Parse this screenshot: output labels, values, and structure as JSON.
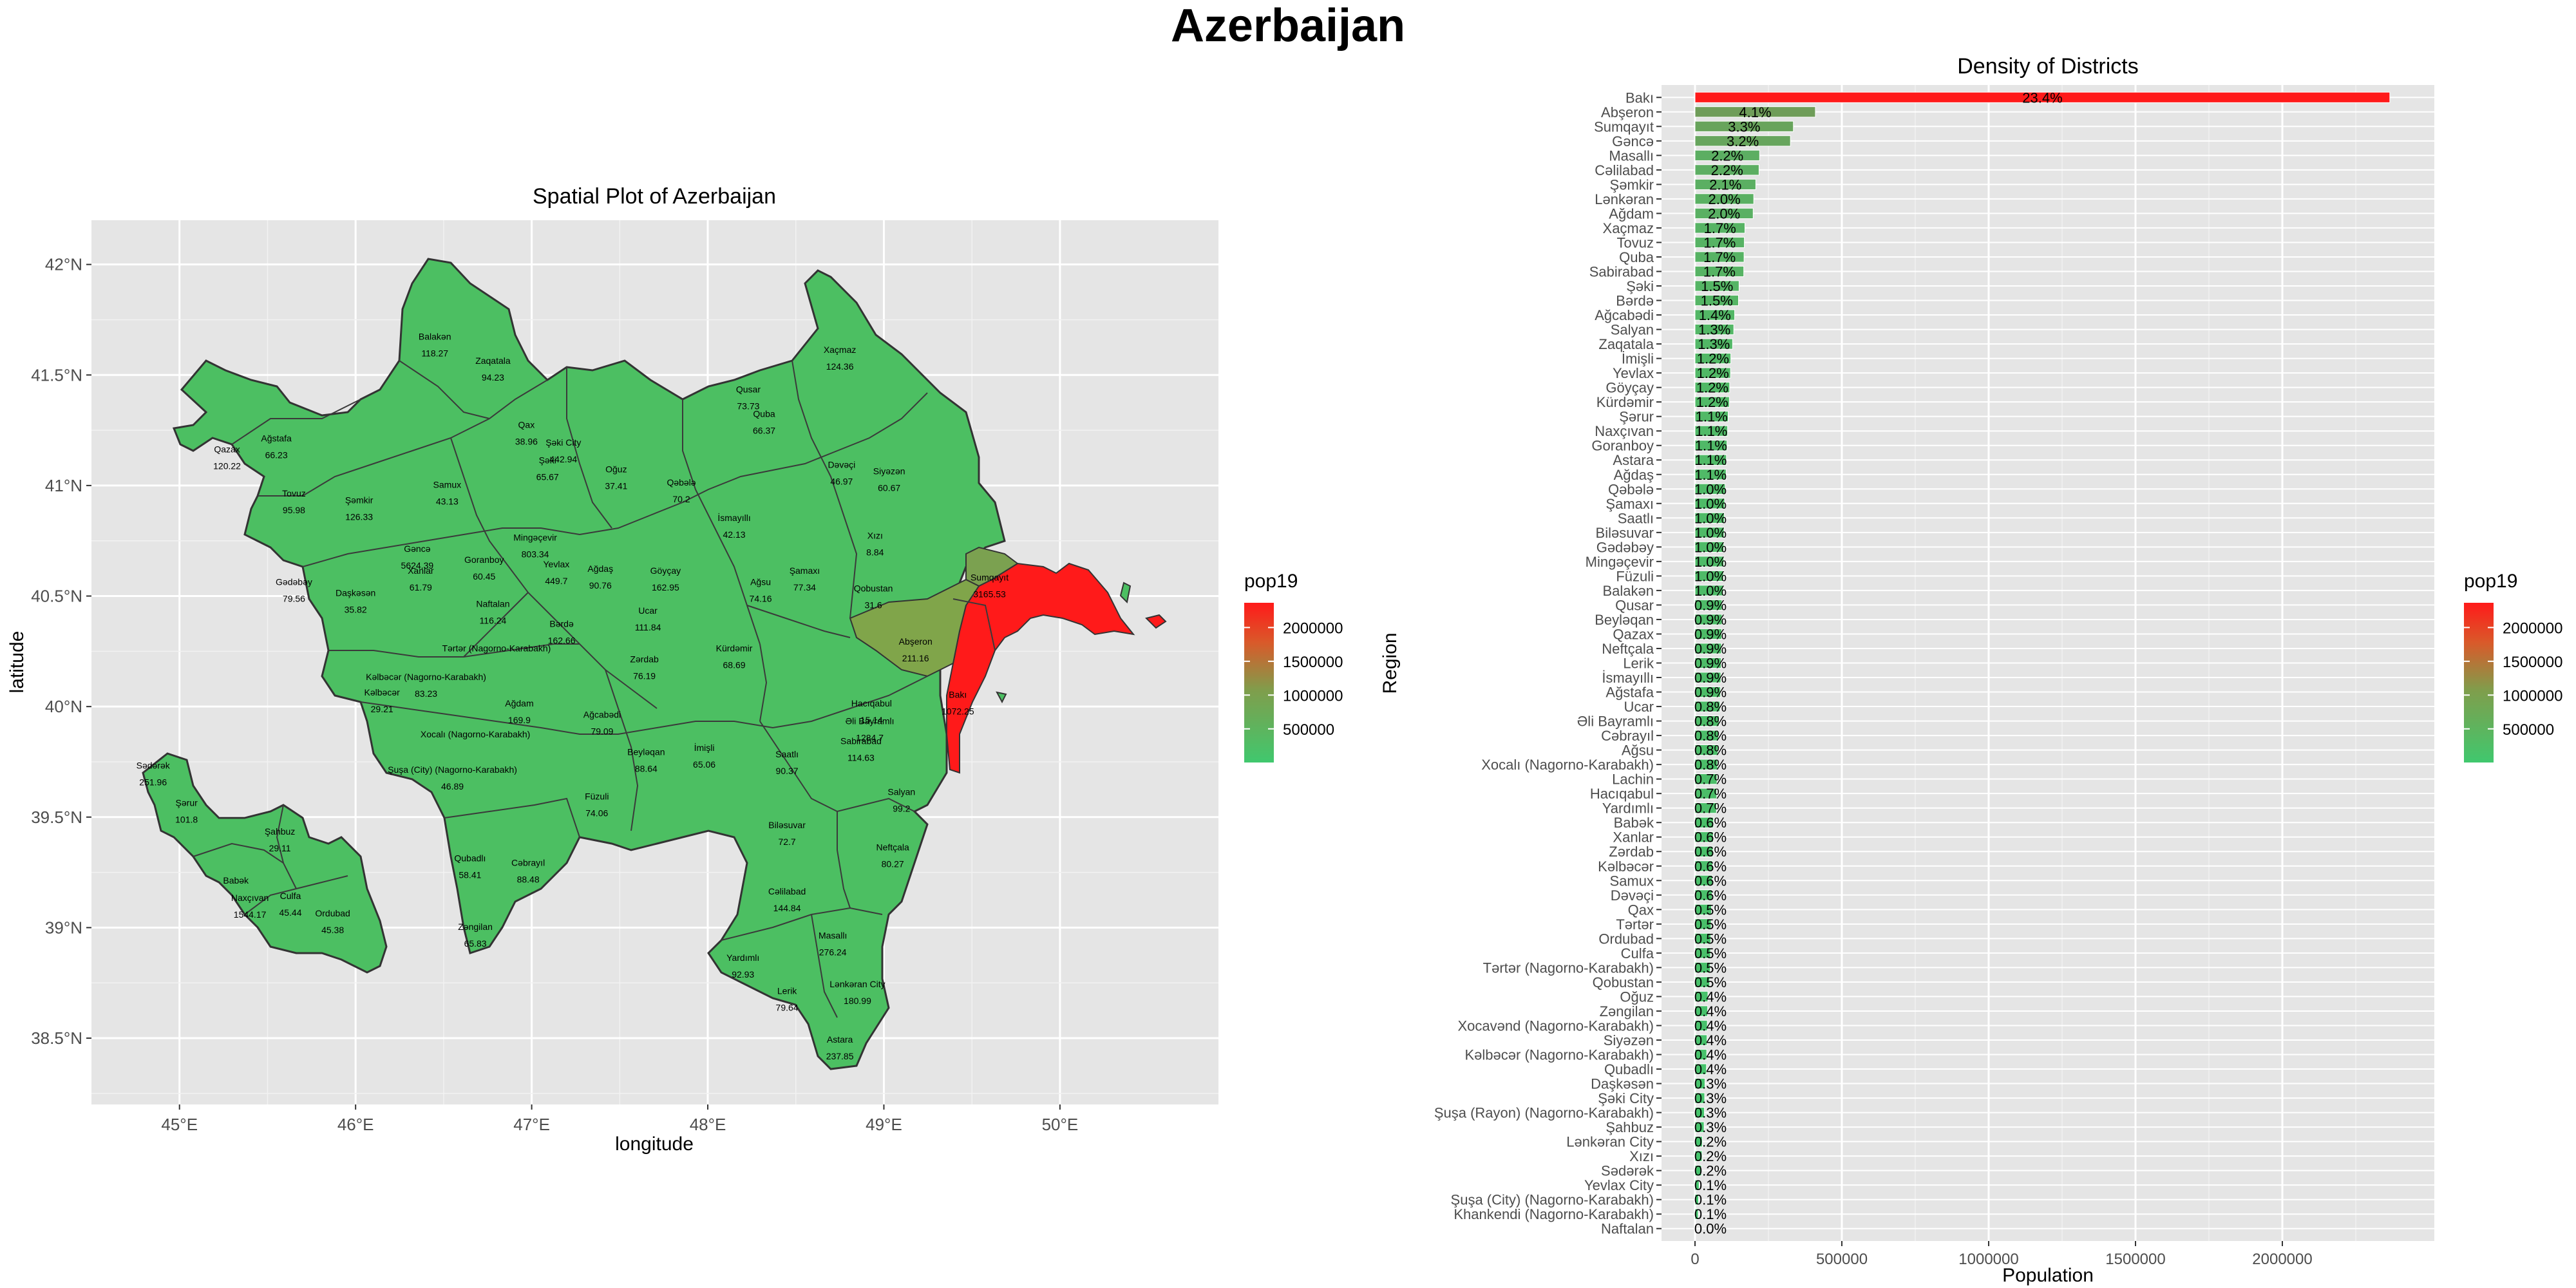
{
  "page_title": "Azerbaijan",
  "chart_data": [
    {
      "type": "map",
      "title": "Spatial Plot of Azerbaijan",
      "xlabel": "longitude",
      "ylabel": "latitude",
      "x_ticks": [
        "45°E",
        "46°E",
        "47°E",
        "48°E",
        "49°E",
        "50°E"
      ],
      "x_tick_values": [
        45,
        46,
        47,
        48,
        49,
        50
      ],
      "y_ticks": [
        "42°N",
        "41.5°N",
        "41°N",
        "40.5°N",
        "40°N",
        "39.5°N",
        "39°N",
        "38.5°N"
      ],
      "y_tick_values": [
        42,
        41.5,
        41,
        40.5,
        40,
        39.5,
        39,
        38.5
      ],
      "xlim": [
        44.5,
        50.9
      ],
      "ylim": [
        38.2,
        42.2
      ],
      "grid": true,
      "legend": {
        "title": "pop19",
        "labels": [
          "2000000",
          "1500000",
          "1000000",
          "500000"
        ],
        "values": [
          2000000,
          1500000,
          1000000,
          500000
        ],
        "low_color": "#40c86e",
        "high_color": "#ff1a1a",
        "placement": "right"
      },
      "regions": [
        {
          "name": "Balakən",
          "value": "118.27",
          "lon": 46.45,
          "lat": 41.66
        },
        {
          "name": "Zaqatala",
          "value": "94.23",
          "lon": 46.78,
          "lat": 41.55
        },
        {
          "name": "Qax",
          "value": "38.96",
          "lon": 46.97,
          "lat": 41.26
        },
        {
          "name": "Şəki City",
          "value": "442.94",
          "lon": 47.18,
          "lat": 41.18
        },
        {
          "name": "Şəki",
          "value": "65.67",
          "lon": 47.09,
          "lat": 41.1
        },
        {
          "name": "Oğuz",
          "value": "37.41",
          "lon": 47.48,
          "lat": 41.06
        },
        {
          "name": "Qəbələ",
          "value": "70.2",
          "lon": 47.85,
          "lat": 41.0
        },
        {
          "name": "Qusar",
          "value": "73.73",
          "lon": 48.23,
          "lat": 41.42
        },
        {
          "name": "Quba",
          "value": "66.37",
          "lon": 48.32,
          "lat": 41.31
        },
        {
          "name": "Xaçmaz",
          "value": "124.36",
          "lon": 48.75,
          "lat": 41.6
        },
        {
          "name": "Dəvəçi",
          "value": "46.97",
          "lon": 48.76,
          "lat": 41.08
        },
        {
          "name": "Siyəzən",
          "value": "60.67",
          "lon": 49.03,
          "lat": 41.05
        },
        {
          "name": "Xızı",
          "value": "8.84",
          "lon": 48.95,
          "lat": 40.76
        },
        {
          "name": "Qazax",
          "value": "120.22",
          "lon": 45.27,
          "lat": 41.15
        },
        {
          "name": "Ağstafa",
          "value": "66.23",
          "lon": 45.55,
          "lat": 41.2
        },
        {
          "name": "Tovuz",
          "value": "95.98",
          "lon": 45.65,
          "lat": 40.95
        },
        {
          "name": "Şəmkir",
          "value": "126.33",
          "lon": 46.02,
          "lat": 40.92
        },
        {
          "name": "Samux",
          "value": "43.13",
          "lon": 46.52,
          "lat": 40.99
        },
        {
          "name": "Gədəbəy",
          "value": "79.56",
          "lon": 45.65,
          "lat": 40.55
        },
        {
          "name": "Gəncə",
          "value": "5624.39",
          "lon": 46.35,
          "lat": 40.7
        },
        {
          "name": "Xanlar",
          "value": "61.79",
          "lon": 46.37,
          "lat": 40.6
        },
        {
          "name": "Daşkəsən",
          "value": "35.82",
          "lon": 46.0,
          "lat": 40.5
        },
        {
          "name": "Goranboy",
          "value": "60.45",
          "lon": 46.73,
          "lat": 40.65
        },
        {
          "name": "Naftalan",
          "value": "116.24",
          "lon": 46.78,
          "lat": 40.45
        },
        {
          "name": "Mingəçevir",
          "value": "803.34",
          "lon": 47.02,
          "lat": 40.75
        },
        {
          "name": "Yevlax",
          "value": "449.7",
          "lon": 47.14,
          "lat": 40.63
        },
        {
          "name": "Ağdaş",
          "value": "90.76",
          "lon": 47.39,
          "lat": 40.61
        },
        {
          "name": "Bərdə",
          "value": "162.66",
          "lon": 47.17,
          "lat": 40.36
        },
        {
          "name": "Göyçay",
          "value": "162.95",
          "lon": 47.76,
          "lat": 40.6
        },
        {
          "name": "Ucar",
          "value": "111.84",
          "lon": 47.66,
          "lat": 40.42
        },
        {
          "name": "İsmayıllı",
          "value": "42.13",
          "lon": 48.15,
          "lat": 40.84
        },
        {
          "name": "Ağsu",
          "value": "74.16",
          "lon": 48.3,
          "lat": 40.55
        },
        {
          "name": "Şamaxı",
          "value": "77.34",
          "lon": 48.55,
          "lat": 40.6
        },
        {
          "name": "Qobustan",
          "value": "31.6",
          "lon": 48.94,
          "lat": 40.52
        },
        {
          "name": "Sumqayıt",
          "value": "3165.53",
          "lon": 49.6,
          "lat": 40.57
        },
        {
          "name": "Abşeron",
          "value": "211.16",
          "lon": 49.18,
          "lat": 40.28
        },
        {
          "name": "Bakı",
          "value": "1072.25",
          "lon": 49.42,
          "lat": 40.04
        },
        {
          "name": "Tərtər (Nagorno-Karabakh)",
          "value": "",
          "lon": 46.8,
          "lat": 40.25
        },
        {
          "name": "Kəlbəcər (Nagorno-Karabakh)",
          "value": "83.23",
          "lon": 46.4,
          "lat": 40.12
        },
        {
          "name": "Kəlbəcər",
          "value": "29.21",
          "lon": 46.15,
          "lat": 40.05
        },
        {
          "name": "Ağdam",
          "value": "169.9",
          "lon": 46.93,
          "lat": 40.0
        },
        {
          "name": "Zərdab",
          "value": "76.19",
          "lon": 47.64,
          "lat": 40.2
        },
        {
          "name": "Kürdəmir",
          "value": "68.69",
          "lon": 48.15,
          "lat": 40.25
        },
        {
          "name": "Ağcabədi",
          "value": "79.09",
          "lon": 47.4,
          "lat": 39.95
        },
        {
          "name": "Beyləqan",
          "value": "88.64",
          "lon": 47.65,
          "lat": 39.78
        },
        {
          "name": "İmişli",
          "value": "65.06",
          "lon": 47.98,
          "lat": 39.8
        },
        {
          "name": "Hacıqabul",
          "value": "15.14",
          "lon": 48.93,
          "lat": 40.0
        },
        {
          "name": "Əli Bayramlı",
          "value": "1284.7",
          "lon": 48.92,
          "lat": 39.92
        },
        {
          "name": "Sabirabad",
          "value": "114.63",
          "lon": 48.87,
          "lat": 39.83
        },
        {
          "name": "Saatlı",
          "value": "90.37",
          "lon": 48.45,
          "lat": 39.77
        },
        {
          "name": "Salyan",
          "value": "99.2",
          "lon": 49.1,
          "lat": 39.6
        },
        {
          "name": "Bilәsuvar",
          "value": "72.7",
          "lon": 48.45,
          "lat": 39.45
        },
        {
          "name": "Neftçala",
          "value": "80.27",
          "lon": 49.05,
          "lat": 39.35
        },
        {
          "name": "Cəlilabad",
          "value": "144.84",
          "lon": 48.45,
          "lat": 39.15
        },
        {
          "name": "Masallı",
          "value": "276.24",
          "lon": 48.71,
          "lat": 38.95
        },
        {
          "name": "Yardımlı",
          "value": "92.93",
          "lon": 48.2,
          "lat": 38.85
        },
        {
          "name": "Lerik",
          "value": "79.64",
          "lon": 48.45,
          "lat": 38.7
        },
        {
          "name": "Lənkəran City",
          "value": "180.99",
          "lon": 48.85,
          "lat": 38.73
        },
        {
          "name": "Astara",
          "value": "237.85",
          "lon": 48.75,
          "lat": 38.48
        },
        {
          "name": "Xocalı (Nagorno-Karabakh)",
          "value": "",
          "lon": 46.68,
          "lat": 39.86
        },
        {
          "name": "Şuşa (City) (Nagorno-Karabakh)",
          "value": "46.89",
          "lon": 46.55,
          "lat": 39.7
        },
        {
          "name": "Füzuli",
          "value": "74.06",
          "lon": 47.37,
          "lat": 39.58
        },
        {
          "name": "Cəbrayıl",
          "value": "88.48",
          "lon": 46.98,
          "lat": 39.28
        },
        {
          "name": "Qubadlı",
          "value": "58.41",
          "lon": 46.65,
          "lat": 39.3
        },
        {
          "name": "Zəngilan",
          "value": "65.83",
          "lon": 46.68,
          "lat": 38.99
        },
        {
          "name": "Sədərək",
          "value": "251.96",
          "lon": 44.85,
          "lat": 39.72
        },
        {
          "name": "Şərur",
          "value": "101.8",
          "lon": 45.04,
          "lat": 39.55
        },
        {
          "name": "Şahbuz",
          "value": "29.11",
          "lon": 45.57,
          "lat": 39.42
        },
        {
          "name": "Babək",
          "value": "",
          "lon": 45.32,
          "lat": 39.2
        },
        {
          "name": "Naxçıvan",
          "value": "1544.17",
          "lon": 45.4,
          "lat": 39.12
        },
        {
          "name": "Culfa",
          "value": "45.44",
          "lon": 45.63,
          "lat": 39.13
        },
        {
          "name": "Ordubad",
          "value": "45.38",
          "lon": 45.87,
          "lat": 39.05
        }
      ]
    },
    {
      "type": "bar",
      "orientation": "horizontal",
      "title": "Density of Districts",
      "xlabel": "Population",
      "ylabel": "Region",
      "x_ticks": [
        "0",
        "500000",
        "1000000",
        "1500000",
        "2000000"
      ],
      "x_tick_values": [
        0,
        500000,
        1000000,
        1500000,
        2000000
      ],
      "xlim": [
        0,
        2500000
      ],
      "grid": true,
      "legend": {
        "title": "pop19",
        "labels": [
          "2000000",
          "1500000",
          "1000000",
          "500000"
        ],
        "values": [
          2000000,
          1500000,
          1000000,
          500000
        ],
        "low_color": "#40c86e",
        "high_color": "#ff1a1a",
        "placement": "right"
      },
      "categories": [
        "Bakı",
        "Abşeron",
        "Sumqayıt",
        "Gəncə",
        "Masallı",
        "Cəlilabad",
        "Şəmkir",
        "Lənkəran",
        "Ağdam",
        "Xaçmaz",
        "Tovuz",
        "Quba",
        "Sabirabad",
        "Şəki",
        "Bərdə",
        "Ağcabədi",
        "Salyan",
        "Zaqatala",
        "İmişli",
        "Yevlax",
        "Göyçay",
        "Kürdəmir",
        "Şərur",
        "Naxçıvan",
        "Goranboy",
        "Astara",
        "Ağdaş",
        "Qəbələ",
        "Şamaxı",
        "Saatlı",
        "Biləsuvar",
        "Gədəbəy",
        "Mingəçevir",
        "Füzuli",
        "Balakən",
        "Qusar",
        "Beyləqan",
        "Qazax",
        "Neftçala",
        "Lerik",
        "İsmayıllı",
        "Ağstafa",
        "Ucar",
        "Əli Bayramlı",
        "Cəbrayıl",
        "Ağsu",
        "Xocalı  (Nagorno-Karabakh)",
        "Lachin",
        "Hacıqabul",
        "Yardımlı",
        "Babək",
        "Xanlar",
        "Zərdab",
        "Kəlbəcər",
        "Samux",
        "Dəvəçi",
        "Qax",
        "Tərtər",
        "Ordubad",
        "Culfa",
        "Tərtər (Nagorno-Karabakh)",
        "Qobustan",
        "Oğuz",
        "Zəngilan",
        "Xocavənd  (Nagorno-Karabakh)",
        "Siyəzən",
        "Kəlbəcər  (Nagorno-Karabakh)",
        "Qubadlı",
        "Daşkəsən",
        "Şəki City",
        "Şuşa (Rayon) (Nagorno-Karabakh)",
        "Şahbuz",
        "Lənkəran City",
        "Xızı",
        "Sədərək",
        "Yevlax City",
        "Şuşa (City)  (Nagorno-Karabakh)",
        "Khankendi  (Nagorno-Karabakh)",
        "Naftalan"
      ],
      "values": [
        2366000,
        410000,
        335000,
        325000,
        220000,
        218000,
        207000,
        200000,
        198000,
        170000,
        168000,
        167000,
        166000,
        150000,
        148000,
        135000,
        132000,
        128000,
        122000,
        121000,
        118000,
        117000,
        113000,
        111000,
        109000,
        107000,
        106000,
        103000,
        101000,
        100000,
        99000,
        98000,
        98000,
        97000,
        96000,
        92000,
        92000,
        91000,
        90000,
        89000,
        88000,
        87000,
        85000,
        82000,
        80000,
        78000,
        77000,
        75000,
        74000,
        73000,
        63000,
        62000,
        61000,
        60000,
        59000,
        58000,
        56000,
        55000,
        54000,
        53000,
        52000,
        50000,
        44000,
        43000,
        42000,
        41000,
        40000,
        39000,
        34000,
        33000,
        32000,
        31000,
        25000,
        24000,
        22000,
        14000,
        12000,
        11000,
        2000
      ],
      "labels": [
        "23.4%",
        "4.1%",
        "3.3%",
        "3.2%",
        "2.2%",
        "2.2%",
        "2.1%",
        "2.0%",
        "2.0%",
        "1.7%",
        "1.7%",
        "1.7%",
        "1.7%",
        "1.5%",
        "1.5%",
        "1.4%",
        "1.3%",
        "1.3%",
        "1.2%",
        "1.2%",
        "1.2%",
        "1.2%",
        "1.1%",
        "1.1%",
        "1.1%",
        "1.1%",
        "1.1%",
        "1.0%",
        "1.0%",
        "1.0%",
        "1.0%",
        "1.0%",
        "1.0%",
        "1.0%",
        "1.0%",
        "0.9%",
        "0.9%",
        "0.9%",
        "0.9%",
        "0.9%",
        "0.9%",
        "0.9%",
        "0.8%",
        "0.8%",
        "0.8%",
        "0.8%",
        "0.8%",
        "0.7%",
        "0.7%",
        "0.7%",
        "0.6%",
        "0.6%",
        "0.6%",
        "0.6%",
        "0.6%",
        "0.6%",
        "0.5%",
        "0.5%",
        "0.5%",
        "0.5%",
        "0.5%",
        "0.5%",
        "0.4%",
        "0.4%",
        "0.4%",
        "0.4%",
        "0.4%",
        "0.4%",
        "0.3%",
        "0.3%",
        "0.3%",
        "0.3%",
        "0.2%",
        "0.2%",
        "0.2%",
        "0.1%",
        "0.1%",
        "0.1%",
        "0.0%"
      ]
    }
  ]
}
